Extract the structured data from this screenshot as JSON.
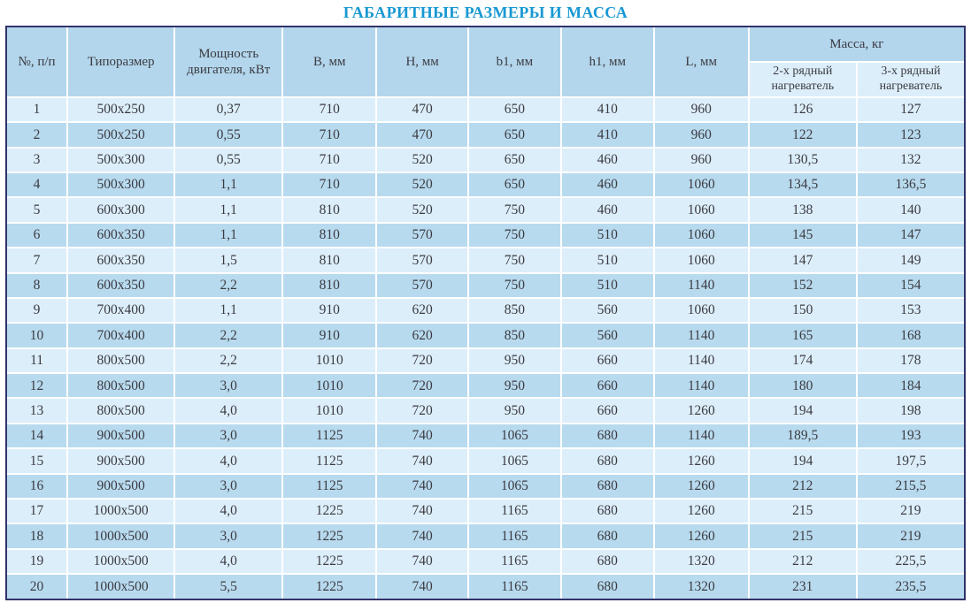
{
  "page": {
    "title": "ГАБАРИТНЫЕ РАЗМЕРЫ И МАССА"
  },
  "colors": {
    "title_text": "#1898d2",
    "header_bg": "#b3d6ec",
    "subheader_bg": "#dceefa",
    "row_odd_bg": "#dceefa",
    "row_even_bg": "#b8daee",
    "outer_border": "#32326a",
    "grid_lines": "#ffffff",
    "cell_text": "#3b3b42"
  },
  "table": {
    "headers": {
      "num": "№, п/п",
      "size": "Типоразмер",
      "power": "Мощность двигателя, кВт",
      "b": "В, мм",
      "h": "Н, мм",
      "b1": "b1, мм",
      "h1": "h1, мм",
      "l": "L, мм",
      "mass_group": "Масса, кг",
      "mass_2row": "2-х рядный нагреватель",
      "mass_3row": "3-х рядный нагреватель"
    },
    "rows": [
      [
        "1",
        "500x250",
        "0,37",
        "710",
        "470",
        "650",
        "410",
        "960",
        "126",
        "127"
      ],
      [
        "2",
        "500x250",
        "0,55",
        "710",
        "470",
        "650",
        "410",
        "960",
        "122",
        "123"
      ],
      [
        "3",
        "500x300",
        "0,55",
        "710",
        "520",
        "650",
        "460",
        "960",
        "130,5",
        "132"
      ],
      [
        "4",
        "500x300",
        "1,1",
        "710",
        "520",
        "650",
        "460",
        "1060",
        "134,5",
        "136,5"
      ],
      [
        "5",
        "600x300",
        "1,1",
        "810",
        "520",
        "750",
        "460",
        "1060",
        "138",
        "140"
      ],
      [
        "6",
        "600x350",
        "1,1",
        "810",
        "570",
        "750",
        "510",
        "1060",
        "145",
        "147"
      ],
      [
        "7",
        "600x350",
        "1,5",
        "810",
        "570",
        "750",
        "510",
        "1060",
        "147",
        "149"
      ],
      [
        "8",
        "600x350",
        "2,2",
        "810",
        "570",
        "750",
        "510",
        "1140",
        "152",
        "154"
      ],
      [
        "9",
        "700x400",
        "1,1",
        "910",
        "620",
        "850",
        "560",
        "1060",
        "150",
        "153"
      ],
      [
        "10",
        "700x400",
        "2,2",
        "910",
        "620",
        "850",
        "560",
        "1140",
        "165",
        "168"
      ],
      [
        "11",
        "800x500",
        "2,2",
        "1010",
        "720",
        "950",
        "660",
        "1140",
        "174",
        "178"
      ],
      [
        "12",
        "800x500",
        "3,0",
        "1010",
        "720",
        "950",
        "660",
        "1140",
        "180",
        "184"
      ],
      [
        "13",
        "800x500",
        "4,0",
        "1010",
        "720",
        "950",
        "660",
        "1260",
        "194",
        "198"
      ],
      [
        "14",
        "900x500",
        "3,0",
        "1125",
        "740",
        "1065",
        "680",
        "1140",
        "189,5",
        "193"
      ],
      [
        "15",
        "900x500",
        "4,0",
        "1125",
        "740",
        "1065",
        "680",
        "1260",
        "194",
        "197,5"
      ],
      [
        "16",
        "900x500",
        "3,0",
        "1125",
        "740",
        "1065",
        "680",
        "1260",
        "212",
        "215,5"
      ],
      [
        "17",
        "1000x500",
        "4,0",
        "1225",
        "740",
        "1165",
        "680",
        "1260",
        "215",
        "219"
      ],
      [
        "18",
        "1000x500",
        "3,0",
        "1225",
        "740",
        "1165",
        "680",
        "1260",
        "215",
        "219"
      ],
      [
        "19",
        "1000x500",
        "4,0",
        "1225",
        "740",
        "1165",
        "680",
        "1320",
        "212",
        "225,5"
      ],
      [
        "20",
        "1000x500",
        "5,5",
        "1225",
        "740",
        "1165",
        "680",
        "1320",
        "231",
        "235,5"
      ]
    ]
  }
}
